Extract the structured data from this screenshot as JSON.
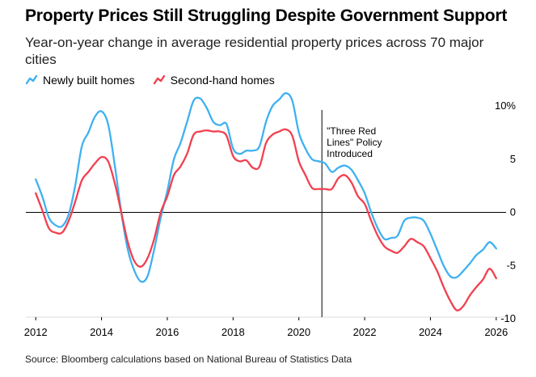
{
  "title": "Property Prices Still Struggling Despite Government Support",
  "subtitle": "Year-on-year change in average residential property prices across 70 major cities",
  "source": "Source: Bloomberg calculations based on National Bureau of Statistics Data",
  "colors": {
    "new_homes": "#3fb1f0",
    "second_hand": "#f1404f",
    "axis": "#000000",
    "grid": "#dddddd"
  },
  "chart_data": {
    "type": "line",
    "title": "Property Prices Still Struggling Despite Government Support",
    "xlabel": "",
    "ylabel": "",
    "xlim": [
      2011.7,
      2026.3
    ],
    "ylim": [
      -10,
      10
    ],
    "x_ticks": [
      2012,
      2014,
      2016,
      2018,
      2020,
      2022,
      2024,
      2026
    ],
    "x_tick_labels": [
      "2012",
      "2014",
      "2016",
      "2018",
      "2020",
      "2022",
      "2024",
      "2026"
    ],
    "y_ticks": [
      10,
      5,
      0,
      -5,
      -10
    ],
    "y_tick_labels": [
      "10%",
      "5",
      "0",
      "-5",
      "-10"
    ],
    "legend_position": "top-left",
    "annotation": {
      "x": 2020.7,
      "lines": [
        "\"Three Red",
        "Lines\" Policy",
        "Introduced"
      ]
    },
    "series": [
      {
        "name": "Newly built homes",
        "color": "#3fb1f0",
        "points": [
          [
            2012.0,
            3.1
          ],
          [
            2012.2,
            1.5
          ],
          [
            2012.4,
            -0.5
          ],
          [
            2012.6,
            -1.2
          ],
          [
            2012.8,
            -1.3
          ],
          [
            2013.0,
            -0.2
          ],
          [
            2013.2,
            2.5
          ],
          [
            2013.4,
            6.2
          ],
          [
            2013.6,
            7.5
          ],
          [
            2013.8,
            9.0
          ],
          [
            2014.0,
            9.5
          ],
          [
            2014.2,
            8.3
          ],
          [
            2014.4,
            4.5
          ],
          [
            2014.6,
            0.0
          ],
          [
            2014.8,
            -3.5
          ],
          [
            2015.0,
            -5.5
          ],
          [
            2015.2,
            -6.5
          ],
          [
            2015.4,
            -6.0
          ],
          [
            2015.6,
            -3.5
          ],
          [
            2015.8,
            -0.5
          ],
          [
            2016.0,
            2.0
          ],
          [
            2016.2,
            5.0
          ],
          [
            2016.4,
            6.5
          ],
          [
            2016.6,
            8.5
          ],
          [
            2016.8,
            10.5
          ],
          [
            2017.0,
            10.7
          ],
          [
            2017.2,
            9.8
          ],
          [
            2017.4,
            8.5
          ],
          [
            2017.6,
            8.2
          ],
          [
            2017.8,
            8.3
          ],
          [
            2018.0,
            6.0
          ],
          [
            2018.2,
            5.5
          ],
          [
            2018.4,
            5.8
          ],
          [
            2018.6,
            5.8
          ],
          [
            2018.8,
            6.2
          ],
          [
            2019.0,
            8.5
          ],
          [
            2019.2,
            10.0
          ],
          [
            2019.4,
            10.6
          ],
          [
            2019.6,
            11.2
          ],
          [
            2019.8,
            10.5
          ],
          [
            2020.0,
            7.5
          ],
          [
            2020.2,
            6.0
          ],
          [
            2020.4,
            5.0
          ],
          [
            2020.6,
            4.8
          ],
          [
            2020.8,
            4.6
          ],
          [
            2021.0,
            3.8
          ],
          [
            2021.2,
            4.2
          ],
          [
            2021.4,
            4.4
          ],
          [
            2021.6,
            4.0
          ],
          [
            2021.8,
            3.0
          ],
          [
            2022.0,
            1.8
          ],
          [
            2022.2,
            0.0
          ],
          [
            2022.4,
            -1.5
          ],
          [
            2022.6,
            -2.5
          ],
          [
            2022.8,
            -2.4
          ],
          [
            2023.0,
            -2.2
          ],
          [
            2023.2,
            -0.8
          ],
          [
            2023.4,
            -0.5
          ],
          [
            2023.6,
            -0.5
          ],
          [
            2023.8,
            -0.8
          ],
          [
            2024.0,
            -2.0
          ],
          [
            2024.2,
            -3.5
          ],
          [
            2024.4,
            -5.0
          ],
          [
            2024.6,
            -6.0
          ],
          [
            2024.8,
            -6.1
          ],
          [
            2025.0,
            -5.5
          ],
          [
            2025.2,
            -4.8
          ],
          [
            2025.4,
            -4.0
          ],
          [
            2025.6,
            -3.5
          ],
          [
            2025.8,
            -2.8
          ],
          [
            2026.0,
            -3.4
          ]
        ]
      },
      {
        "name": "Second-hand homes",
        "color": "#f1404f",
        "points": [
          [
            2012.0,
            1.8
          ],
          [
            2012.2,
            0.2
          ],
          [
            2012.4,
            -1.5
          ],
          [
            2012.6,
            -1.9
          ],
          [
            2012.8,
            -1.9
          ],
          [
            2013.0,
            -0.8
          ],
          [
            2013.2,
            1.0
          ],
          [
            2013.4,
            3.0
          ],
          [
            2013.6,
            3.8
          ],
          [
            2013.8,
            4.6
          ],
          [
            2014.0,
            5.2
          ],
          [
            2014.2,
            4.8
          ],
          [
            2014.4,
            2.8
          ],
          [
            2014.6,
            0.0
          ],
          [
            2014.8,
            -2.8
          ],
          [
            2015.0,
            -4.6
          ],
          [
            2015.2,
            -5.1
          ],
          [
            2015.4,
            -4.3
          ],
          [
            2015.6,
            -2.5
          ],
          [
            2015.8,
            0.0
          ],
          [
            2016.0,
            1.5
          ],
          [
            2016.2,
            3.5
          ],
          [
            2016.4,
            4.3
          ],
          [
            2016.6,
            5.5
          ],
          [
            2016.8,
            7.3
          ],
          [
            2017.0,
            7.6
          ],
          [
            2017.2,
            7.7
          ],
          [
            2017.4,
            7.6
          ],
          [
            2017.6,
            7.6
          ],
          [
            2017.8,
            7.2
          ],
          [
            2018.0,
            5.3
          ],
          [
            2018.2,
            4.8
          ],
          [
            2018.4,
            4.9
          ],
          [
            2018.6,
            4.2
          ],
          [
            2018.8,
            4.3
          ],
          [
            2019.0,
            6.5
          ],
          [
            2019.2,
            7.3
          ],
          [
            2019.4,
            7.6
          ],
          [
            2019.6,
            7.8
          ],
          [
            2019.8,
            7.2
          ],
          [
            2020.0,
            4.8
          ],
          [
            2020.2,
            3.5
          ],
          [
            2020.4,
            2.3
          ],
          [
            2020.6,
            2.2
          ],
          [
            2020.8,
            2.2
          ],
          [
            2021.0,
            2.2
          ],
          [
            2021.2,
            3.2
          ],
          [
            2021.4,
            3.5
          ],
          [
            2021.6,
            2.8
          ],
          [
            2021.8,
            1.5
          ],
          [
            2022.0,
            0.8
          ],
          [
            2022.2,
            -0.8
          ],
          [
            2022.4,
            -2.2
          ],
          [
            2022.6,
            -3.2
          ],
          [
            2022.8,
            -3.6
          ],
          [
            2023.0,
            -3.8
          ],
          [
            2023.2,
            -3.2
          ],
          [
            2023.4,
            -2.5
          ],
          [
            2023.6,
            -2.8
          ],
          [
            2023.8,
            -3.2
          ],
          [
            2024.0,
            -4.3
          ],
          [
            2024.2,
            -5.5
          ],
          [
            2024.4,
            -7.0
          ],
          [
            2024.6,
            -8.3
          ],
          [
            2024.8,
            -9.2
          ],
          [
            2025.0,
            -8.8
          ],
          [
            2025.2,
            -7.8
          ],
          [
            2025.4,
            -7.0
          ],
          [
            2025.6,
            -6.3
          ],
          [
            2025.8,
            -5.3
          ],
          [
            2026.0,
            -6.2
          ]
        ]
      }
    ]
  }
}
